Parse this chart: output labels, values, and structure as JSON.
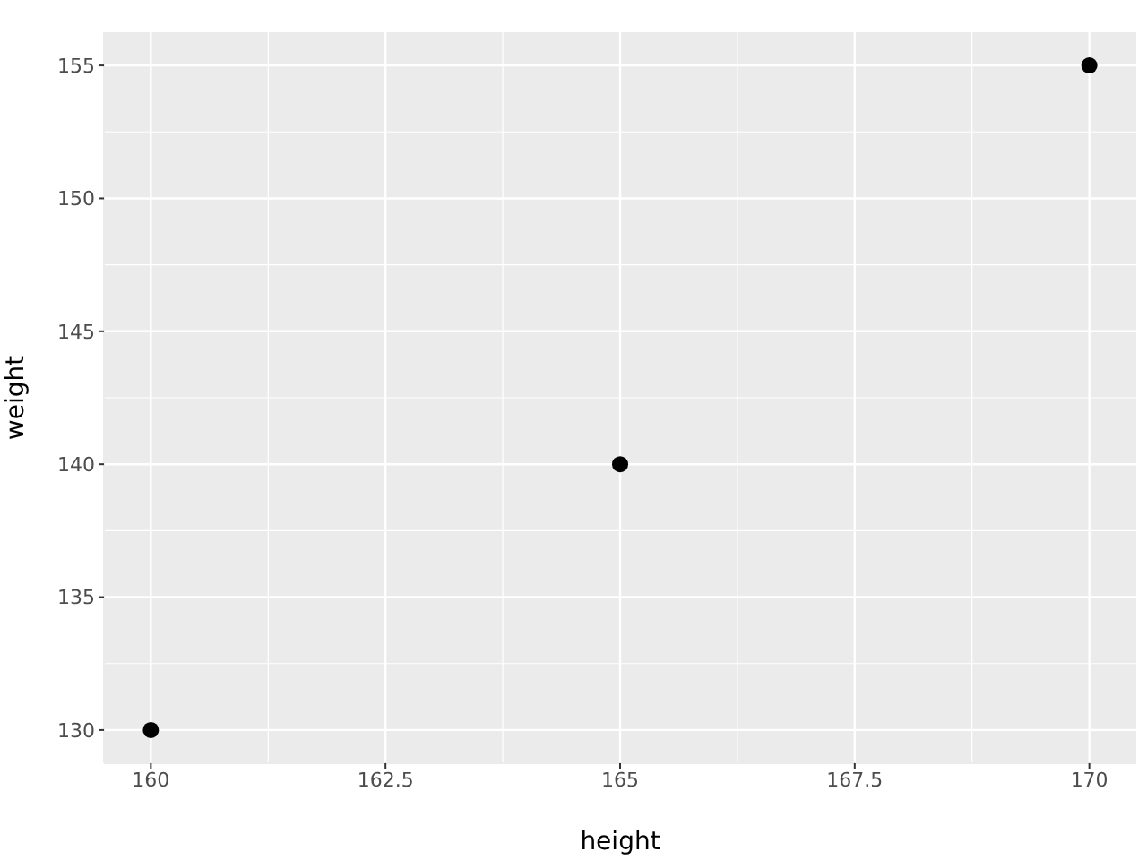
{
  "chart_data": {
    "type": "scatter",
    "xlabel": "height",
    "ylabel": "weight",
    "x": [
      160,
      165,
      170
    ],
    "series": [
      {
        "color": "#000000",
        "values": [
          130,
          140,
          155
        ]
      }
    ],
    "xlim": [
      159.5,
      170.5
    ],
    "xticks": [
      160,
      162.5,
      165,
      167.5,
      170
    ],
    "ylim": [
      128.75,
      156.25
    ],
    "yticks": [
      130,
      135,
      140,
      145,
      150,
      155
    ],
    "grid": true,
    "marker": "circle"
  }
}
